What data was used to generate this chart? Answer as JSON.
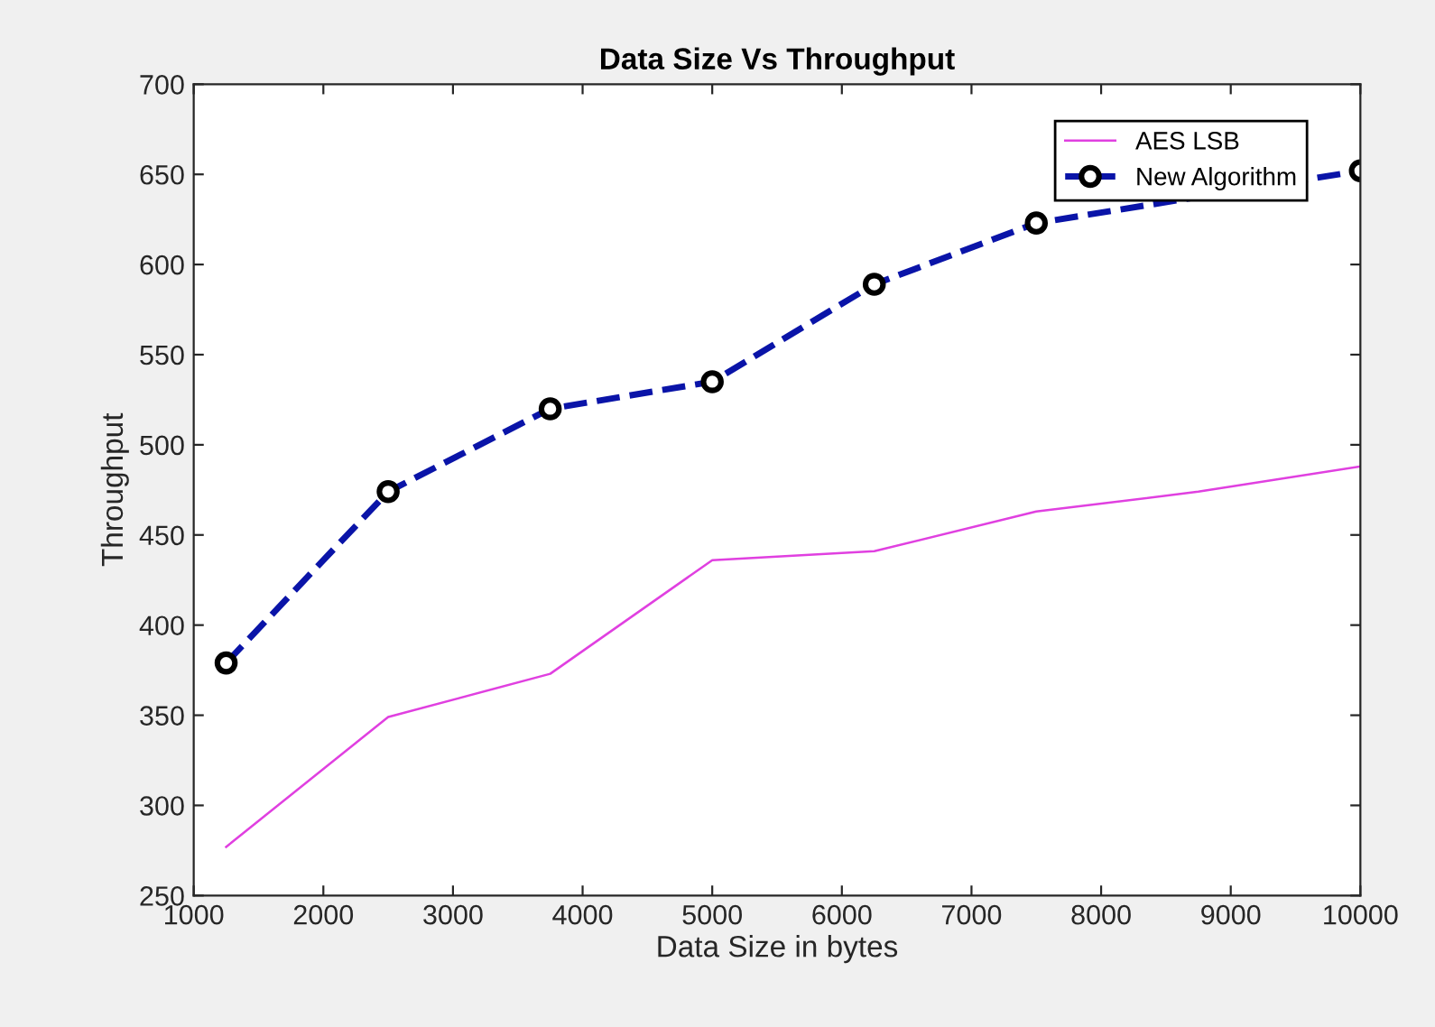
{
  "chart_data": {
    "type": "line",
    "title": "Data Size Vs Throughput",
    "xlabel": "Data Size in bytes",
    "ylabel": "Throughput",
    "xlim": [
      1000,
      10000
    ],
    "xticks": [
      1000,
      2000,
      3000,
      4000,
      5000,
      6000,
      7000,
      8000,
      9000,
      10000
    ],
    "ylim": [
      250,
      700
    ],
    "yticks": [
      250,
      300,
      350,
      400,
      450,
      500,
      550,
      600,
      650,
      700
    ],
    "grid": false,
    "legend": "top right",
    "series": [
      {
        "name": "AES LSB",
        "color": "#e040e0",
        "line_style": "solid",
        "marker": "none",
        "x": [
          1250,
          2500,
          3750,
          5000,
          6250,
          7500,
          8750,
          10000
        ],
        "values": [
          277,
          349,
          373,
          436,
          441,
          463,
          474,
          488
        ]
      },
      {
        "name": "New Algorithm",
        "color": "#0a14a8",
        "line_style": "dashed",
        "marker": "circle",
        "x": [
          1250,
          2500,
          3750,
          5000,
          6250,
          7500,
          10000
        ],
        "values": [
          379,
          474,
          520,
          535,
          589,
          623,
          652
        ]
      }
    ]
  }
}
